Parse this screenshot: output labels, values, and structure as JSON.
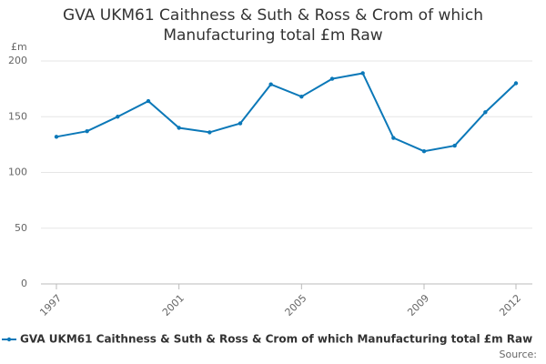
{
  "chart_data": {
    "type": "line",
    "title": "GVA UKM61 Caithness & Suth & Ross & Crom of which Manufacturing total £m Raw",
    "y_label": "£m",
    "source": "Source:",
    "x": [
      1997,
      1998,
      1999,
      2000,
      2001,
      2002,
      2003,
      2004,
      2005,
      2006,
      2007,
      2008,
      2009,
      2010,
      2011,
      2012
    ],
    "series": [
      {
        "name": "GVA UKM61 Caithness & Suth & Ross & Crom of which Manufacturing total £m Raw",
        "color": "#0b78b8",
        "values": [
          132,
          137,
          150,
          164,
          140,
          136,
          144,
          179,
          168,
          184,
          189,
          131,
          119,
          124,
          154,
          180
        ]
      }
    ],
    "xlim": [
      1997,
      2012
    ],
    "xticks": [
      1997,
      2001,
      2005,
      2009,
      2012
    ],
    "ylim": [
      0,
      200
    ],
    "yticks": [
      0,
      50,
      100,
      150,
      200
    ],
    "grid": true,
    "legend": "bottom"
  }
}
